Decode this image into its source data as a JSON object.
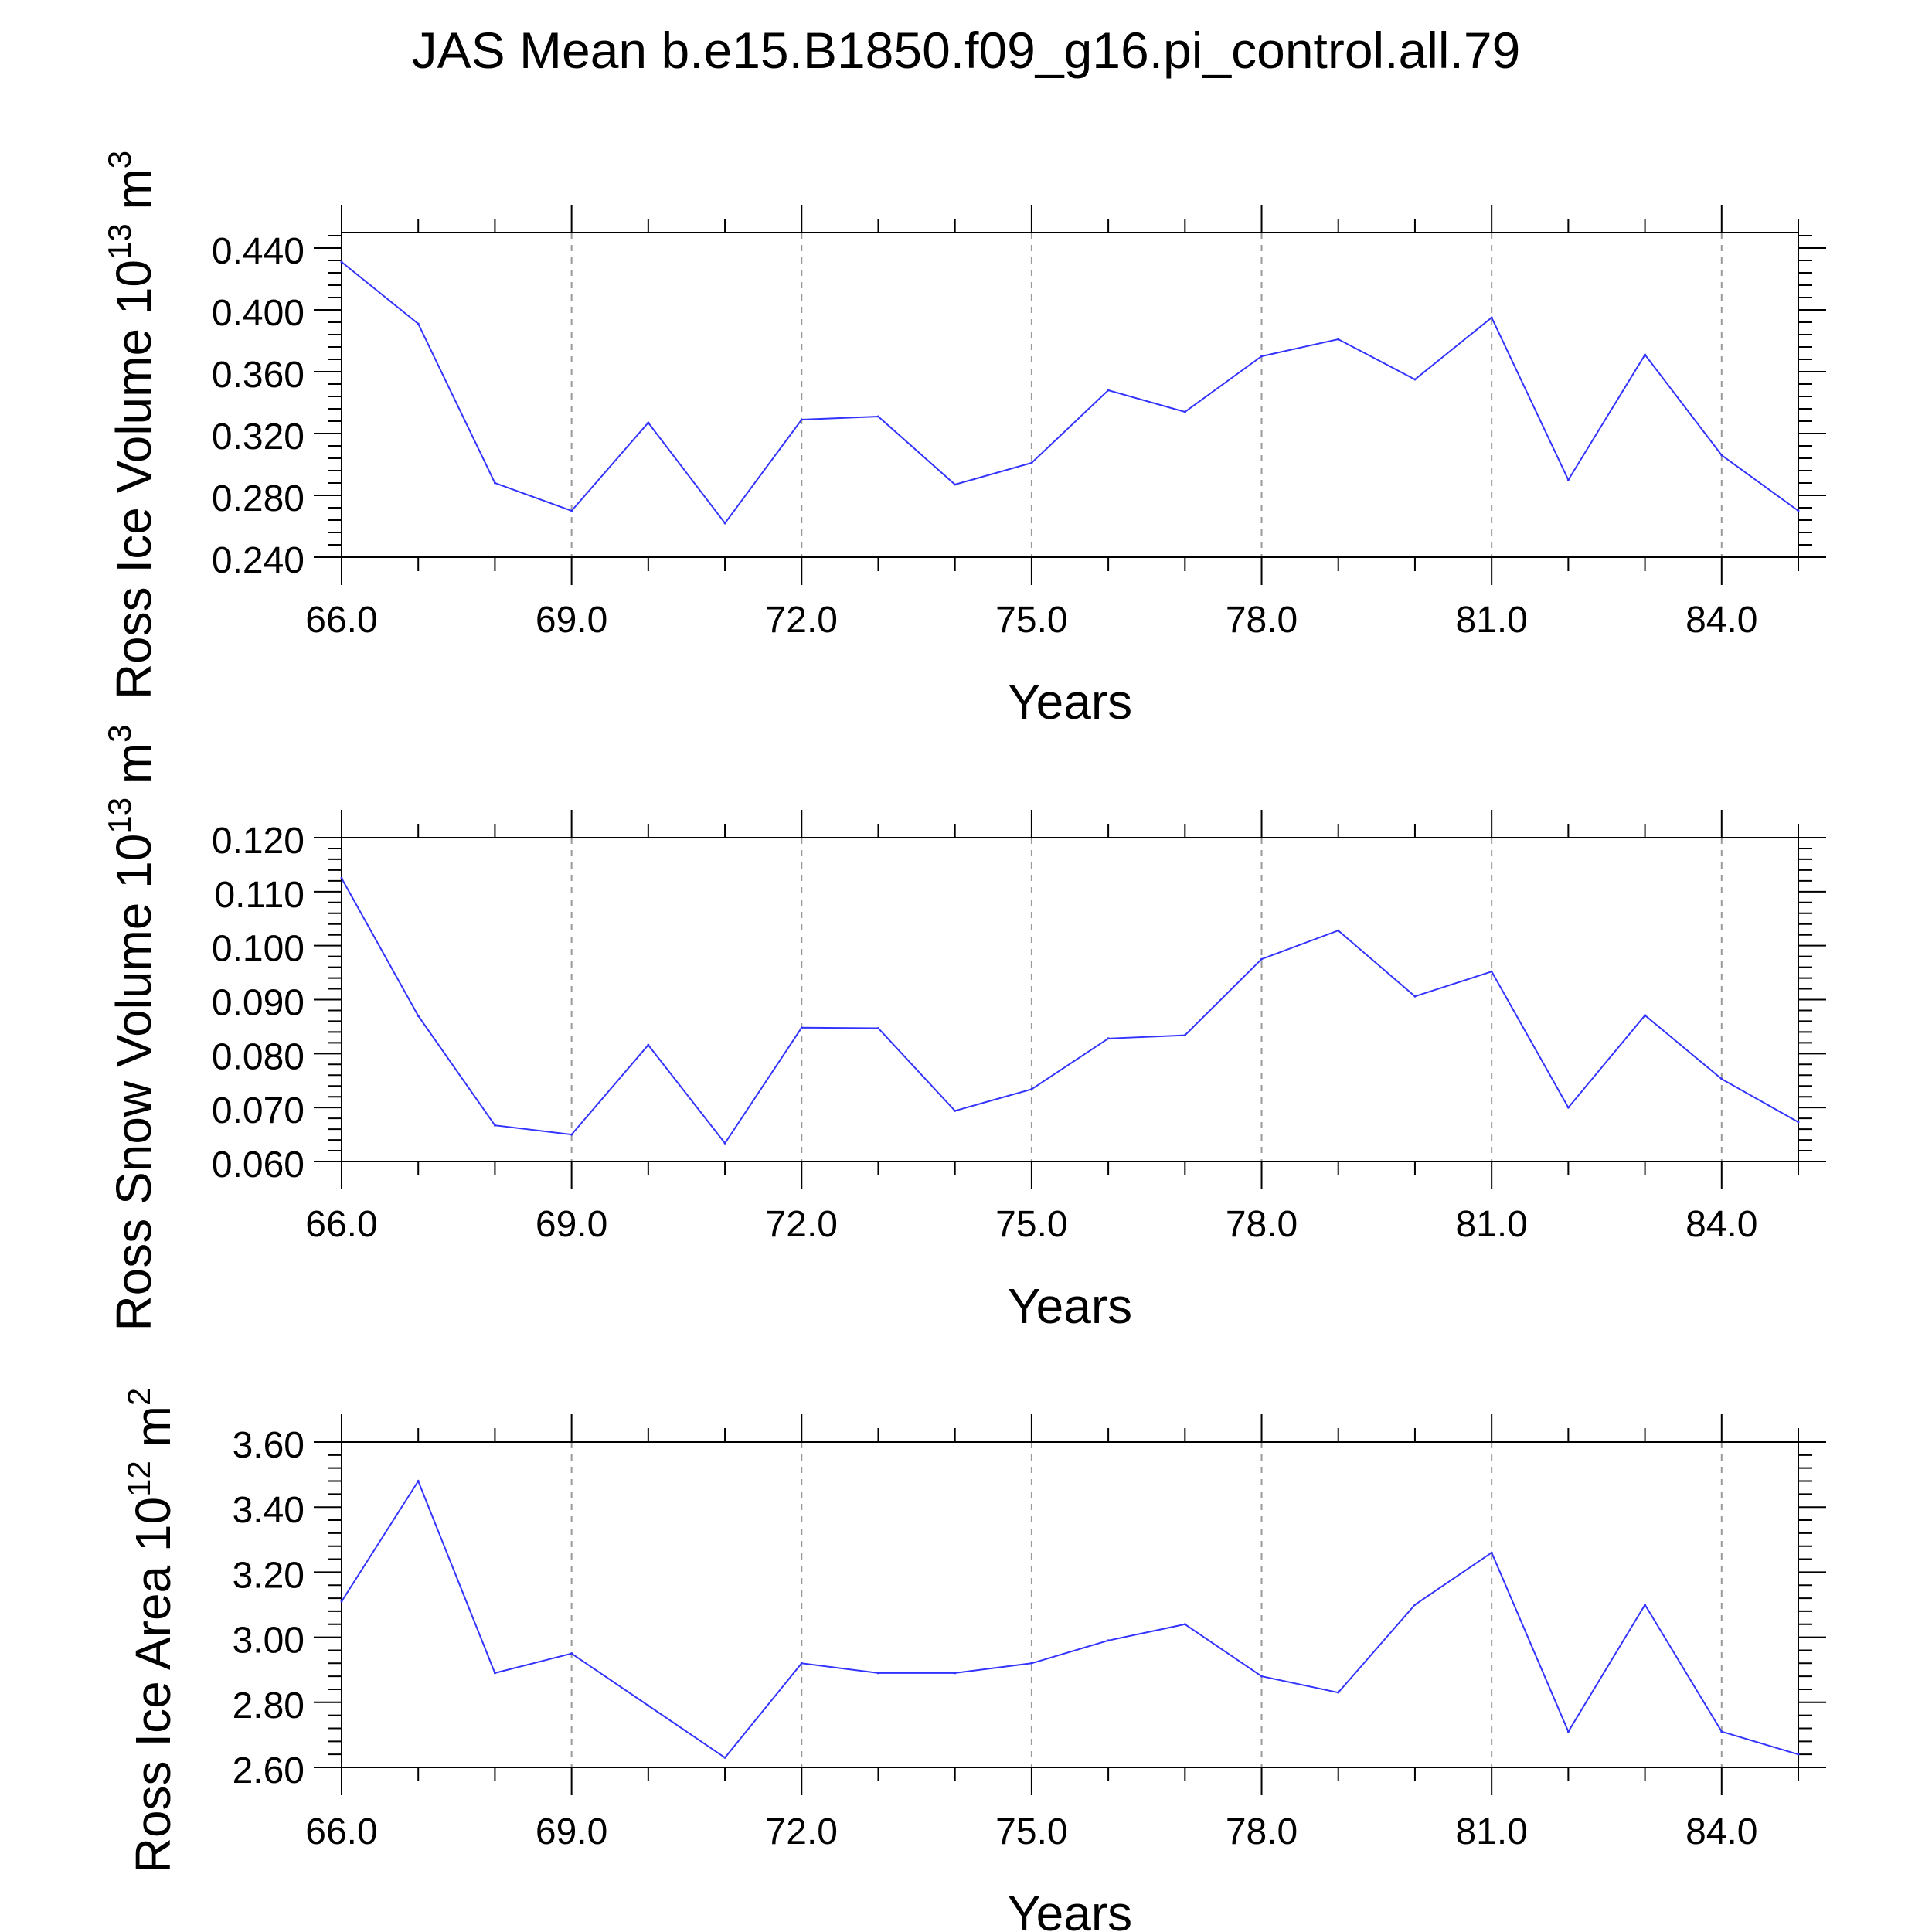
{
  "figure": {
    "title": "JAS Mean b.e15.B1850.f09_g16.pi_control.all.79"
  },
  "chart_data": [
    {
      "type": "line",
      "title": "",
      "xlabel": "Years",
      "ylabel_main": "Ross Ice Volume 10",
      "ylabel_exponent": "13",
      "ylabel_unit": "m",
      "ylabel_unit_power": "3",
      "xlim": [
        66,
        85
      ],
      "ylim": [
        0.24,
        0.45
      ],
      "x_ticks": [
        "66.0",
        "69.0",
        "72.0",
        "75.0",
        "78.0",
        "81.0",
        "84.0"
      ],
      "y_ticks": [
        "0.240",
        "0.280",
        "0.320",
        "0.360",
        "0.400",
        "0.440"
      ],
      "grid": "vertical-dashed",
      "line_color": "#3333ff",
      "series": [
        {
          "name": "Ross Ice Volume",
          "x": [
            66,
            67,
            68,
            69,
            70,
            71,
            72,
            73,
            74,
            75,
            76,
            77,
            78,
            79,
            80,
            81,
            82,
            83,
            84,
            85
          ],
          "values": [
            0.431,
            0.391,
            0.288,
            0.27,
            0.327,
            0.262,
            0.329,
            0.331,
            0.287,
            0.301,
            0.348,
            0.334,
            0.37,
            0.381,
            0.355,
            0.395,
            0.29,
            0.371,
            0.306,
            0.27
          ]
        }
      ]
    },
    {
      "type": "line",
      "title": "",
      "xlabel": "Years",
      "ylabel_main": "Ross Snow Volume 10",
      "ylabel_exponent": "13",
      "ylabel_unit": "m",
      "ylabel_unit_power": "3",
      "xlim": [
        66,
        85
      ],
      "ylim": [
        0.06,
        0.12
      ],
      "x_ticks": [
        "66.0",
        "69.0",
        "72.0",
        "75.0",
        "78.0",
        "81.0",
        "84.0"
      ],
      "y_ticks": [
        "0.060",
        "0.070",
        "0.080",
        "0.090",
        "0.100",
        "0.110",
        "0.120"
      ],
      "grid": "vertical-dashed",
      "line_color": "#3333ff",
      "series": [
        {
          "name": "Ross Snow Volume",
          "x": [
            66,
            67,
            68,
            69,
            70,
            71,
            72,
            73,
            74,
            75,
            76,
            77,
            78,
            79,
            80,
            81,
            82,
            83,
            84,
            85
          ],
          "values": [
            0.1125,
            0.087,
            0.0667,
            0.065,
            0.0816,
            0.0634,
            0.0848,
            0.0847,
            0.0694,
            0.0734,
            0.0828,
            0.0834,
            0.0975,
            0.1028,
            0.0906,
            0.0952,
            0.07,
            0.0871,
            0.0753,
            0.0673
          ]
        }
      ]
    },
    {
      "type": "line",
      "title": "",
      "xlabel": "Years",
      "ylabel_main": "Ross Ice Area 10",
      "ylabel_exponent": "12",
      "ylabel_unit": "m",
      "ylabel_unit_power": "2",
      "xlim": [
        66,
        85
      ],
      "ylim": [
        2.6,
        3.6
      ],
      "x_ticks": [
        "66.0",
        "69.0",
        "72.0",
        "75.0",
        "78.0",
        "81.0",
        "84.0"
      ],
      "y_ticks": [
        "2.60",
        "2.80",
        "3.00",
        "3.20",
        "3.40",
        "3.60"
      ],
      "grid": "vertical-dashed",
      "line_color": "#3333ff",
      "series": [
        {
          "name": "Ross Ice Area",
          "x": [
            66,
            67,
            68,
            69,
            70,
            71,
            72,
            73,
            74,
            75,
            76,
            77,
            78,
            79,
            80,
            81,
            82,
            83,
            84,
            85
          ],
          "values": [
            3.11,
            3.48,
            2.89,
            2.95,
            2.79,
            2.63,
            2.92,
            2.89,
            2.89,
            2.92,
            2.99,
            3.04,
            2.88,
            2.83,
            3.1,
            3.26,
            2.71,
            3.1,
            2.71,
            2.64
          ]
        }
      ]
    }
  ]
}
